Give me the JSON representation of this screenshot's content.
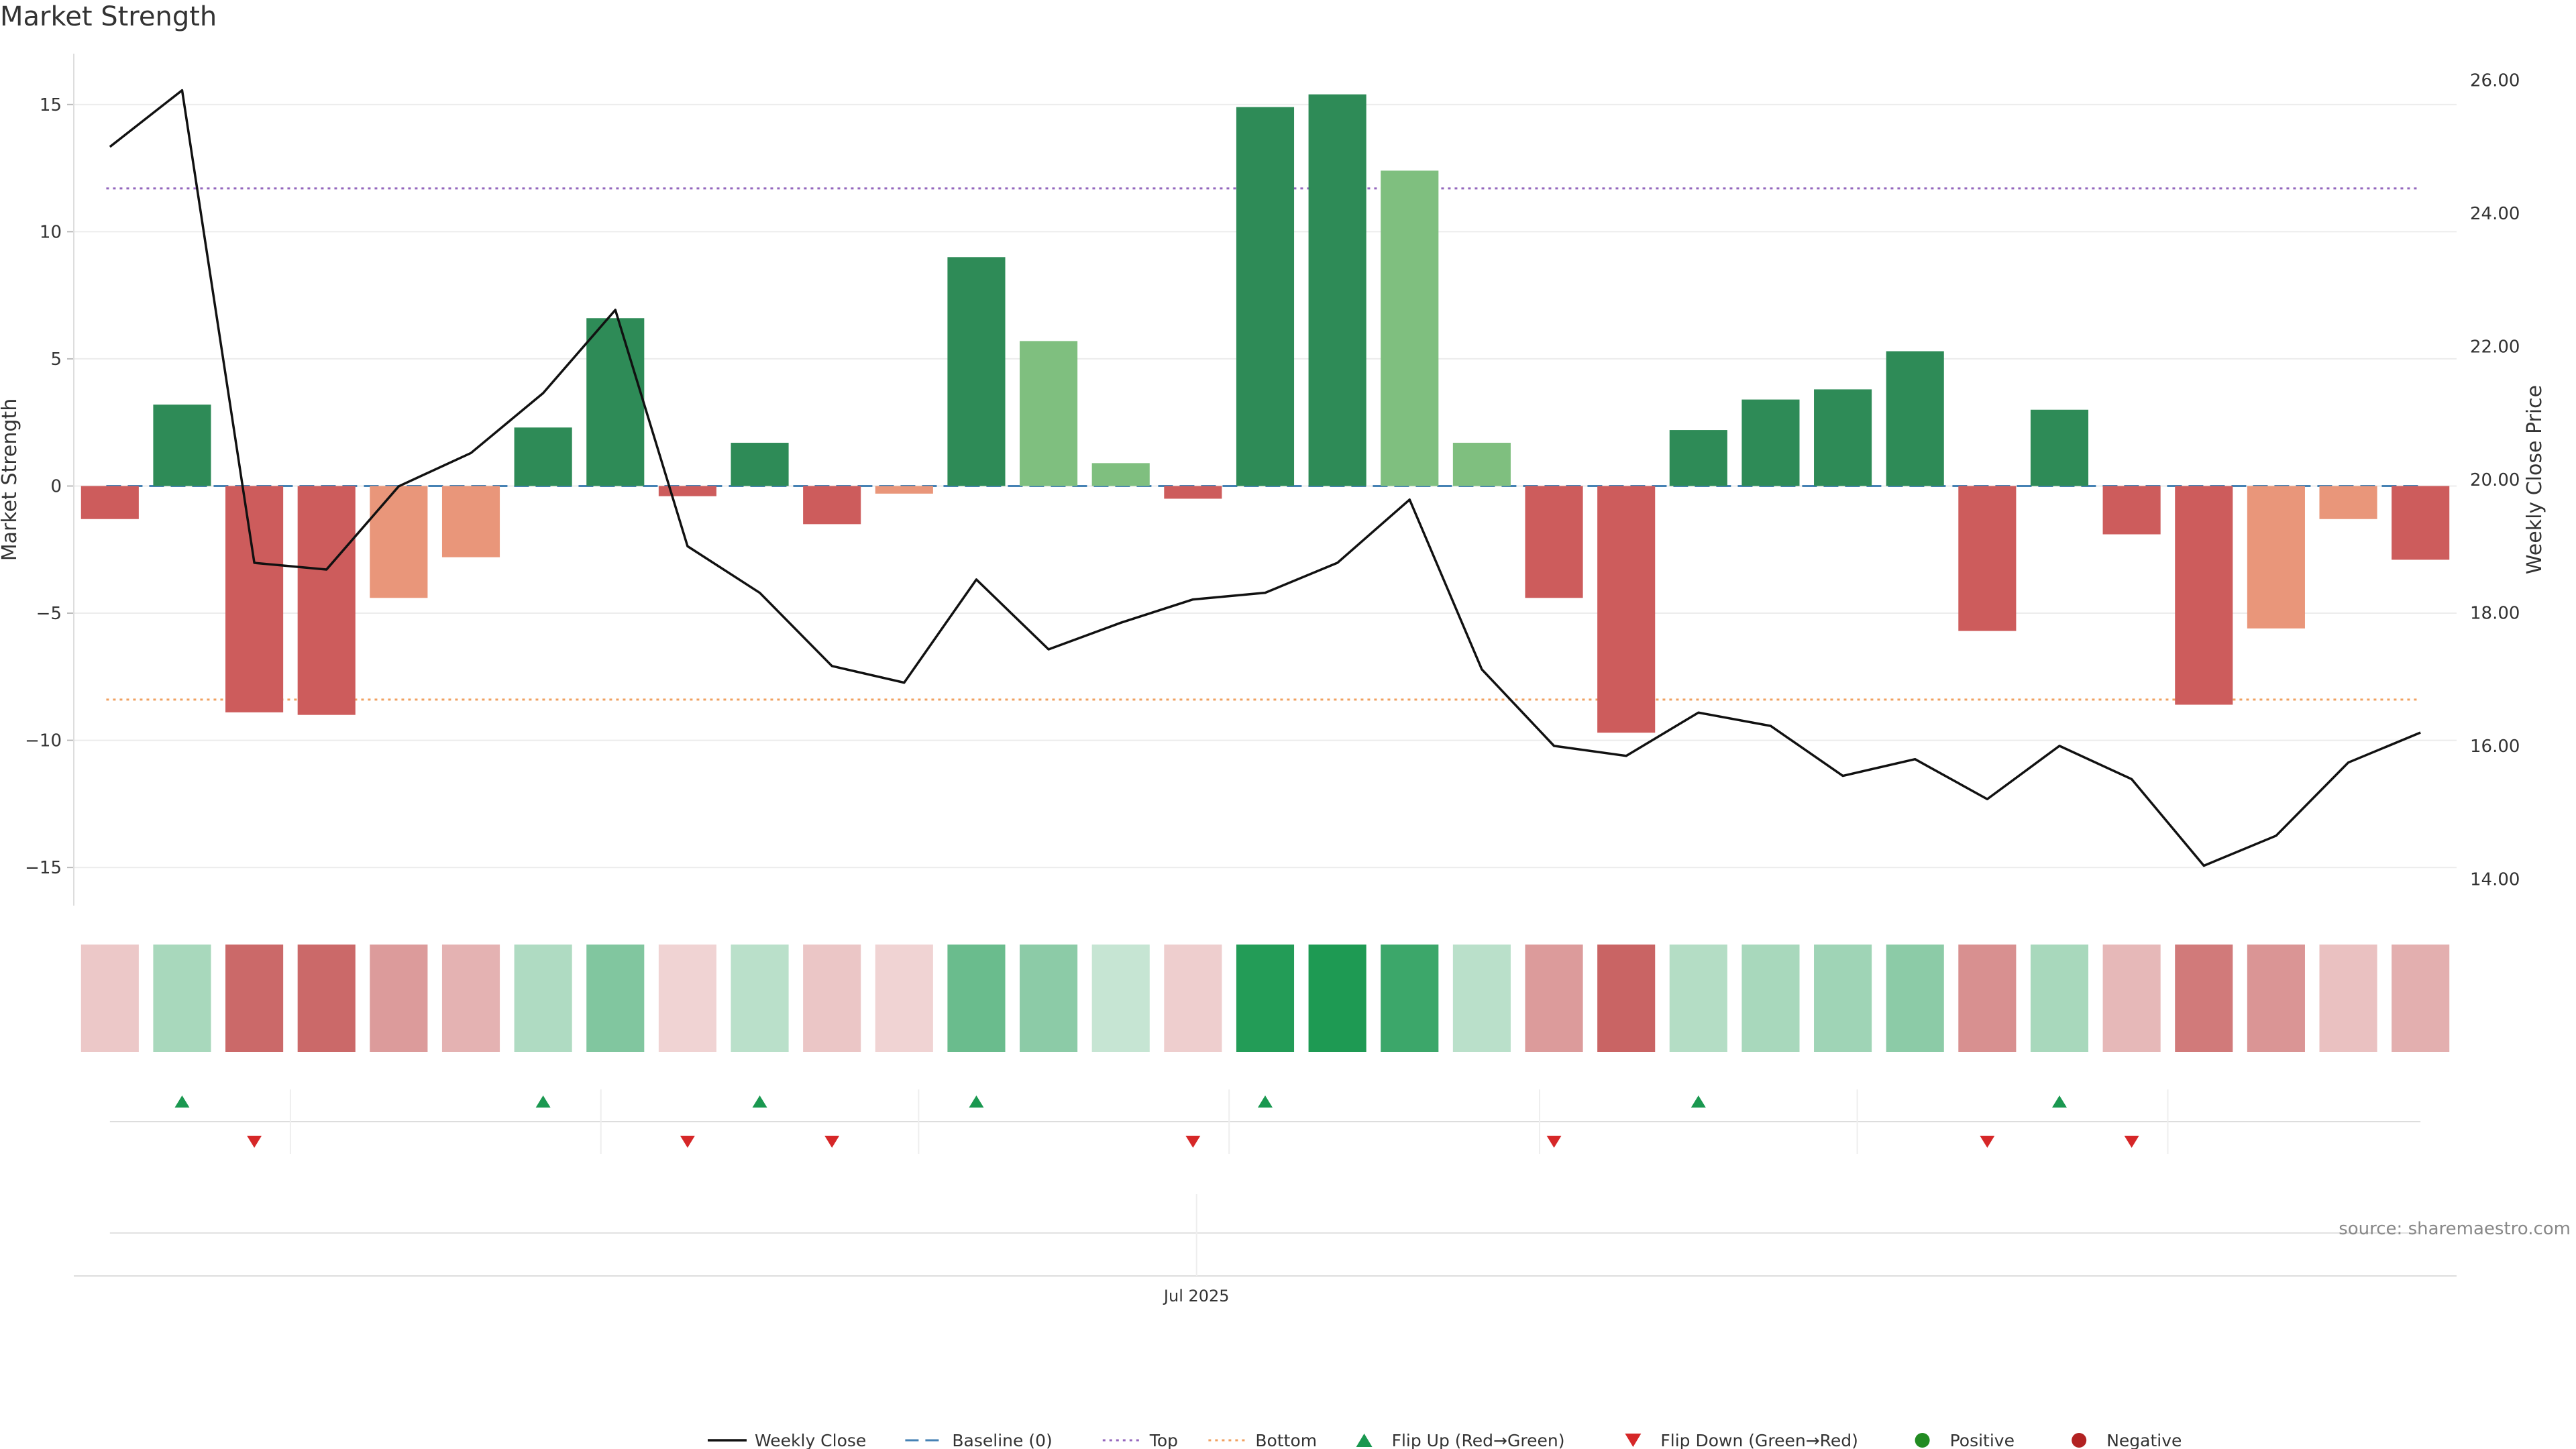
{
  "title": "Market Strength",
  "source": "source: sharemaestro.com",
  "chart_data": {
    "type": "bar",
    "title": "Market Strength",
    "ylabel": "Market Strength",
    "y2label": "Weekly Close Price",
    "ylim": [
      -16.5,
      17
    ],
    "y2lim": [
      13.6,
      26.4
    ],
    "yticks": [
      15,
      10,
      5,
      0,
      -5,
      -10,
      -15
    ],
    "y2ticks": [
      "26.00",
      "24.00",
      "22.00",
      "20.00",
      "18.00",
      "16.00",
      "14.00"
    ],
    "xtick_label": "Jul 2025",
    "xtick_index": 15,
    "thresholds": {
      "baseline": 0,
      "top": 11.7,
      "bottom": -8.4
    },
    "colors": {
      "strong_positive": "#2e8b57",
      "weak_positive": "#7fbf7f",
      "strong_negative": "#cd5c5c",
      "weak_negative": "#e9967a",
      "weekly_close": "#111111",
      "baseline": "#4682b4",
      "top": "#9467bd",
      "bottom": "#f0a060",
      "flip_up": "#1a9850",
      "flip_down": "#d62728",
      "positive": "#228b22",
      "negative": "#b22222"
    },
    "series": [
      {
        "name": "Market Strength",
        "values": [
          -1.3,
          3.2,
          -8.9,
          -9.0,
          -4.4,
          -2.8,
          2.3,
          6.6,
          -0.4,
          1.7,
          -1.5,
          -0.3,
          9.0,
          5.7,
          0.9,
          -0.5,
          14.9,
          15.4,
          12.4,
          1.7,
          -4.4,
          -9.7,
          2.2,
          3.4,
          3.8,
          5.3,
          -5.7,
          3.0,
          -1.9,
          -8.6,
          -5.6,
          -1.3,
          -2.9
        ],
        "shade": [
          "strong",
          "strong",
          "strong",
          "strong",
          "weak",
          "weak",
          "strong",
          "strong",
          "strong",
          "strong",
          "strong",
          "weak",
          "strong",
          "weak",
          "weak",
          "strong",
          "strong",
          "strong",
          "weak",
          "weak",
          "strong",
          "strong",
          "strong",
          "strong",
          "strong",
          "strong",
          "strong",
          "strong",
          "strong",
          "strong",
          "weak",
          "weak",
          "strong"
        ]
      },
      {
        "name": "Weekly Close",
        "values": [
          25.0,
          25.85,
          18.75,
          18.65,
          19.9,
          20.4,
          21.3,
          22.55,
          19.0,
          18.3,
          17.2,
          16.95,
          18.5,
          17.45,
          17.85,
          18.2,
          18.3,
          18.75,
          19.7,
          17.15,
          16.0,
          15.85,
          16.5,
          16.3,
          15.55,
          15.8,
          15.2,
          16.0,
          15.5,
          14.2,
          14.65,
          15.75,
          16.2
        ]
      }
    ],
    "heat_opacity": [
      0.25,
      0.38,
      0.68,
      0.68,
      0.45,
      0.35,
      0.35,
      0.55,
      0.2,
      0.3,
      0.26,
      0.2,
      0.65,
      0.5,
      0.25,
      0.22,
      0.96,
      0.98,
      0.85,
      0.3,
      0.45,
      0.7,
      0.33,
      0.38,
      0.42,
      0.5,
      0.5,
      0.38,
      0.32,
      0.6,
      0.48,
      0.28,
      0.36
    ],
    "flip_up_indices": [
      1,
      6,
      9,
      12,
      16,
      22,
      27
    ],
    "flip_down_indices": [
      2,
      8,
      10,
      15,
      20,
      26,
      28
    ],
    "strip_gaps": [
      2.5,
      6.8,
      11.2,
      15.5,
      19.8,
      24.2,
      28.5
    ],
    "legend": [
      {
        "label": "Weekly Close",
        "marker": "line"
      },
      {
        "label": "Baseline (0)",
        "marker": "dashed"
      },
      {
        "label": "Top",
        "marker": "dotted-top"
      },
      {
        "label": "Bottom",
        "marker": "dotted-bottom"
      },
      {
        "label": "Flip Up (Red→Green)",
        "marker": "triangle-up"
      },
      {
        "label": "Flip Down (Green→Red)",
        "marker": "triangle-down"
      },
      {
        "label": "Positive",
        "marker": "dot-positive"
      },
      {
        "label": "Negative",
        "marker": "dot-negative"
      }
    ]
  }
}
